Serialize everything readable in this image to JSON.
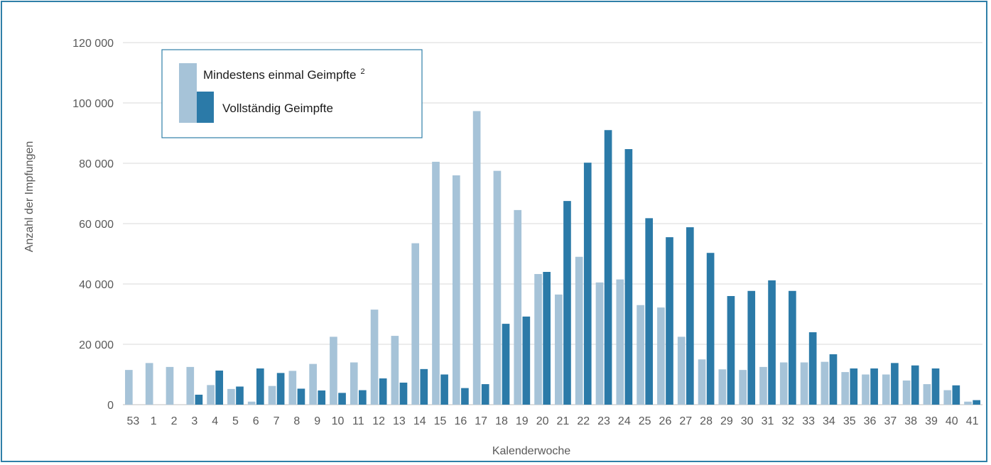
{
  "chart_data": {
    "type": "bar",
    "xlabel": "Kalenderwoche",
    "ylabel": "Anzahl der Impfungen",
    "ylim": [
      0,
      120000
    ],
    "yticks": [
      0,
      20000,
      40000,
      60000,
      80000,
      100000,
      120000
    ],
    "ytick_labels": [
      "0",
      "20 000",
      "40 000",
      "60 000",
      "80 000",
      "100 000",
      "120 000"
    ],
    "grid": true,
    "legend_position": "top-left",
    "categories": [
      "53",
      "1",
      "2",
      "3",
      "4",
      "5",
      "6",
      "7",
      "8",
      "9",
      "10",
      "11",
      "12",
      "13",
      "14",
      "15",
      "16",
      "17",
      "18",
      "19",
      "20",
      "21",
      "22",
      "23",
      "24",
      "25",
      "26",
      "27",
      "28",
      "29",
      "30",
      "31",
      "32",
      "33",
      "34",
      "35",
      "36",
      "37",
      "38",
      "39",
      "40",
      "41"
    ],
    "series": [
      {
        "name": "Mindestens einmal Geimpfte",
        "name_superscript": "2",
        "color": "#a6c3d8",
        "values": [
          11500,
          13800,
          12500,
          12500,
          6500,
          5200,
          1000,
          6200,
          11200,
          13500,
          22500,
          14000,
          31500,
          22800,
          53500,
          80500,
          76000,
          97300,
          77500,
          64500,
          43300,
          36500,
          49000,
          40500,
          41500,
          33000,
          32200,
          22500,
          15000,
          11700,
          11500,
          12500,
          14000,
          14000,
          14200,
          10800,
          10000,
          10000,
          8000,
          6800,
          4800,
          1000
        ]
      },
      {
        "name": "Vollständig Geimpfte",
        "color": "#2b7aa8",
        "values": [
          0,
          0,
          0,
          3300,
          11300,
          6000,
          12000,
          10500,
          5300,
          4700,
          3900,
          4800,
          8700,
          7300,
          11800,
          10000,
          5500,
          6800,
          26800,
          29200,
          44000,
          67500,
          80200,
          91000,
          84700,
          61800,
          55500,
          58800,
          50300,
          36000,
          37700,
          41200,
          37700,
          24000,
          16700,
          12000,
          12000,
          13800,
          13000,
          12000,
          6400,
          1500
        ]
      }
    ]
  }
}
